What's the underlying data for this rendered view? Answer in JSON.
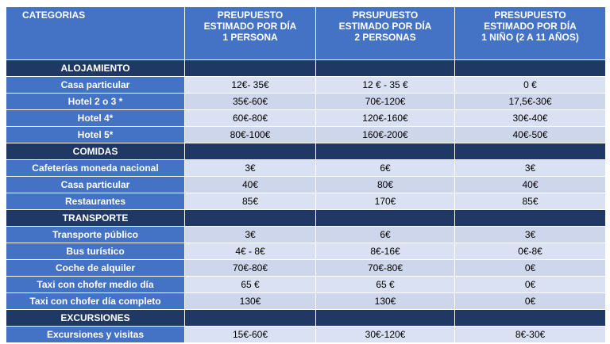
{
  "table": {
    "header": [
      [
        "CATEGORIAS"
      ],
      [
        "PREUPUESTO",
        "ESTIMADO POR DÍA",
        "1 PERSONA"
      ],
      [
        "PRSUPUESTO",
        "ESTIMADO POR DÍA",
        "2 PERSONAS"
      ],
      [
        "PRESUPUESTO",
        "ESTIMADO POR DÍA",
        "1 NIÑO (2 A 11 AÑOS)"
      ]
    ],
    "sections": [
      {
        "title": "ALOJAMIENTO",
        "rows": [
          [
            "Casa particular",
            "12€- 35€",
            "12 € - 35 €",
            "0 €"
          ],
          [
            "Hotel 2 o 3 *",
            "35€-60€",
            "70€-120€",
            "17,5€-30€"
          ],
          [
            "Hotel 4*",
            "60€-80€",
            "120€-160€",
            "30€-40€"
          ],
          [
            "Hotel 5*",
            "80€-100€",
            "160€-200€",
            "40€-50€"
          ]
        ]
      },
      {
        "title": "COMIDAS",
        "rows": [
          [
            "Cafeterías moneda nacional",
            "3€",
            "6€",
            "3€"
          ],
          [
            "Casa particular",
            "40€",
            "80€",
            "40€"
          ],
          [
            "Restaurantes",
            "85€",
            "170€",
            "85€"
          ]
        ]
      },
      {
        "title": "TRANSPORTE",
        "rows": [
          [
            "Transporte público",
            "3€",
            "6€",
            "3€"
          ],
          [
            "Bus turístico",
            "4€ - 8€",
            "8€-16€",
            "0€-8€"
          ],
          [
            "Coche de alquiler",
            "70€-80€",
            "70€-80€",
            "0€"
          ],
          [
            "Taxi con chofer medio día",
            "65 €",
            "65 €",
            "0€"
          ],
          [
            "Taxi con chofer día completo",
            "130€",
            "130€",
            "0€"
          ]
        ]
      },
      {
        "title": "EXCURSIONES",
        "rows": [
          [
            "Excursiones y visitas",
            "15€-60€",
            "30€-120€",
            "8€-30€"
          ]
        ]
      }
    ]
  }
}
